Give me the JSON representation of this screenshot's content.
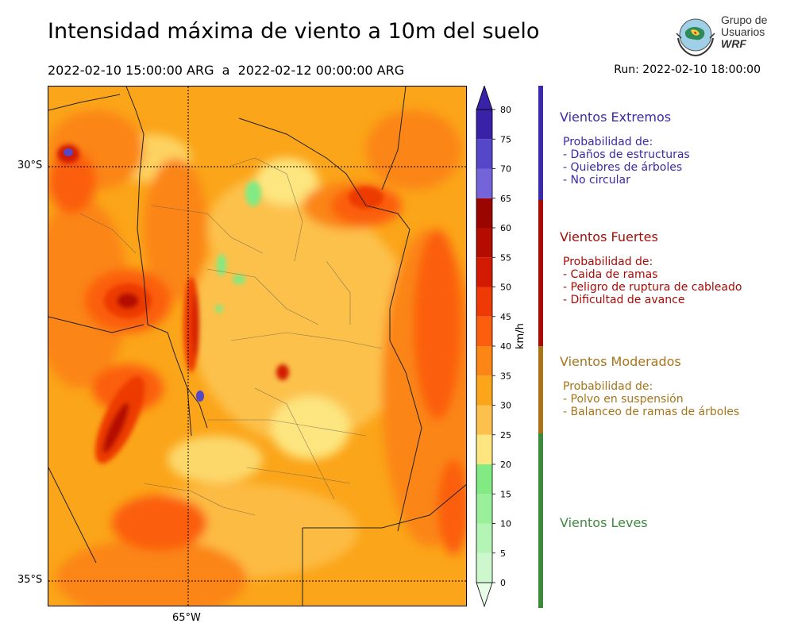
{
  "header": {
    "title": "Intensidad máxima de viento a 10m del suelo",
    "period": "2022-02-10 15:00:00 ARG  a  2022-02-12 00:00:00 ARG",
    "run": "Run: 2022-02-10 18:00:00"
  },
  "logo": {
    "line1": "Grupo de",
    "line2": "Usuarios",
    "line3": "WRF"
  },
  "map": {
    "lat_labels": [
      "30°S",
      "35°S"
    ],
    "lon_labels": [
      "65°W"
    ]
  },
  "colorbar": {
    "unit": "km/h",
    "ticks": [
      "0",
      "5",
      "10",
      "15",
      "20",
      "25",
      "30",
      "35",
      "40",
      "45",
      "50",
      "55",
      "60",
      "65",
      "70",
      "75",
      "80"
    ],
    "colors": [
      "#e6fce6",
      "#cdf8cd",
      "#b4f4b4",
      "#9aef9a",
      "#82ea82",
      "#fde57f",
      "#fcc14c",
      "#fba51a",
      "#fb8515",
      "#fb5e0f",
      "#ed3a06",
      "#d21a02",
      "#b50c00",
      "#9a0500",
      "#7563d9",
      "#5547c8",
      "#3a22a8"
    ]
  },
  "categories": [
    {
      "name": "Vientos Extremos",
      "color": "#3a2aa8",
      "desc_title": "Probabilidad de:",
      "items": [
        "- Daños de estructuras",
        "- Quiebres de árboles",
        "- No circular"
      ]
    },
    {
      "name": "Vientos Fuertes",
      "color": "#a50c08",
      "desc_title": "Probabilidad de:",
      "items": [
        "- Caida de ramas",
        "- Peligro de ruptura de cableado",
        "- Dificultad de avance"
      ]
    },
    {
      "name": "Vientos Moderados",
      "color": "#a8741a",
      "desc_title": "Probabilidad de:",
      "items": [
        "- Polvo en suspensión",
        "- Balanceo de ramas de árboles"
      ]
    },
    {
      "name": "Vientos Leves",
      "color": "#3d8a3d",
      "desc_title": "",
      "items": []
    }
  ]
}
